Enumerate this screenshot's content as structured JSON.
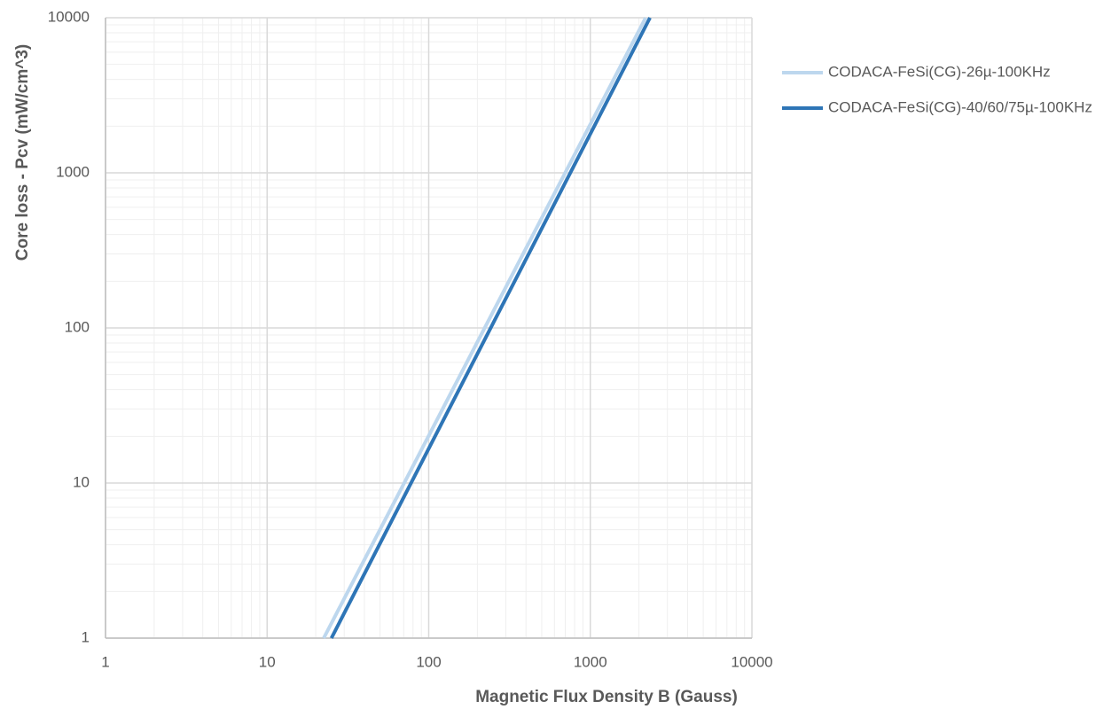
{
  "chart_data": {
    "type": "line",
    "x_label": "Magnetic Flux Density B (Gauss)",
    "y_label": "Core loss  - Pcv  (mW/cm^3)",
    "log_x": true,
    "log_y": true,
    "grid": true,
    "minor_grid": true,
    "legend": "right",
    "xlim": [
      1,
      10000
    ],
    "xticks": [
      1,
      10,
      100,
      1000,
      10000
    ],
    "ylim": [
      1,
      10000
    ],
    "yticks": [
      1,
      10,
      100,
      1000,
      10000
    ],
    "series": [
      {
        "name": "CODACA-FeSi(CG)-26µ-100KHz",
        "color": "#bdd7ee",
        "x": [
          22.4,
          2200
        ],
        "values": [
          1,
          10000
        ]
      },
      {
        "name": "CODACA-FeSi(CG)-40/60/75µ-100KHz",
        "color": "#2e75b6",
        "x": [
          25,
          2340
        ],
        "values": [
          1,
          10000
        ]
      }
    ]
  }
}
